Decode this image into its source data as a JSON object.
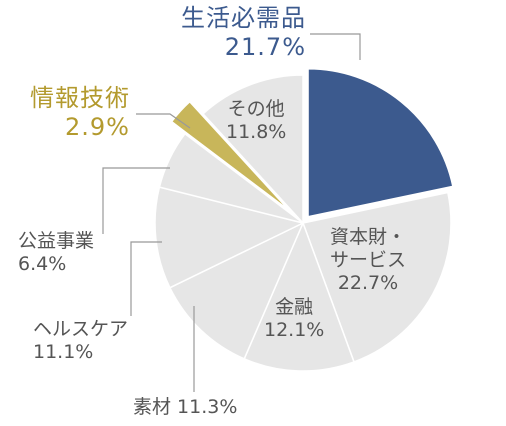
{
  "chart_data": {
    "type": "pie",
    "categories": [
      "生活必需品",
      "資本財・サービス",
      "金融",
      "素材",
      "ヘルスケア",
      "公益事業",
      "情報技術",
      "その他"
    ],
    "values": [
      21.7,
      22.7,
      12.1,
      11.3,
      11.1,
      6.4,
      2.9,
      11.8
    ],
    "value_labels": [
      "21.7%",
      "22.7%",
      "12.1%",
      "11.3%",
      "11.1%",
      "6.4%",
      "2.9%",
      "11.8%"
    ],
    "label_lines": [
      [
        "生活必需品",
        "21.7%"
      ],
      [
        "資本財・",
        "サービス",
        "22.7%"
      ],
      [
        "金融",
        "12.1%"
      ],
      [
        "素材 11.3%"
      ],
      [
        "ヘルスケア",
        "11.1%"
      ],
      [
        "公益事業",
        "6.4%"
      ],
      [
        "情報技術",
        "2.9%"
      ],
      [
        "その他",
        "11.8%"
      ]
    ],
    "colors": {
      "highlight_main": "#3c5a8e",
      "highlight_secondary": "#c8b65a",
      "other_slices": "#e6e6e6",
      "slice_border": "#ffffff",
      "leader_line": "#999999",
      "label_text": "#555555",
      "highlight_main_text": "#3c5a8e",
      "highlight_secondary_text": "#b39a2e"
    },
    "exploded": [
      "生活必需品",
      "情報技術"
    ],
    "start": "top (12 o'clock)",
    "direction": "clockwise"
  }
}
